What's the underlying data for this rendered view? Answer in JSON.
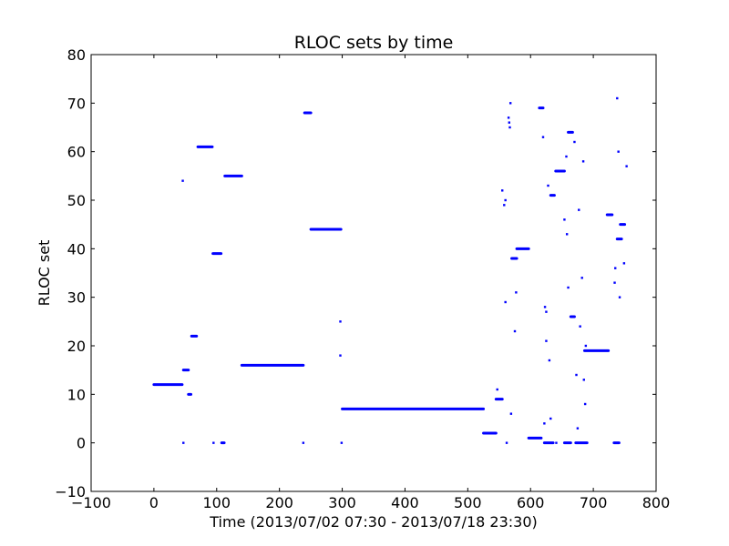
{
  "chart_data": {
    "type": "scatter",
    "title": "RLOC sets by time",
    "xlabel": "Time (2013/07/02 07:30 - 2013/07/18 23:30)",
    "ylabel": "RLOC set",
    "xlim": [
      -100,
      800
    ],
    "ylim": [
      -10,
      80
    ],
    "x_ticks": [
      -100,
      0,
      100,
      200,
      300,
      400,
      500,
      600,
      700,
      800
    ],
    "y_ticks": [
      -10,
      0,
      10,
      20,
      30,
      40,
      50,
      60,
      70,
      80
    ],
    "x_tick_labels": [
      "−100",
      "0",
      "100",
      "200",
      "300",
      "400",
      "500",
      "600",
      "700",
      "800"
    ],
    "y_tick_labels": [
      "−10",
      "0",
      "10",
      "20",
      "30",
      "40",
      "50",
      "60",
      "70",
      "80"
    ],
    "grid": false,
    "marker_color": "#0000ff",
    "series": [
      {
        "segments": [
          {
            "x": [
              0,
              45
            ],
            "y": 12
          },
          {
            "x": [
              47,
              55
            ],
            "y": 15
          },
          {
            "x": [
              55,
              59
            ],
            "y": 10
          },
          {
            "x": [
              60,
              68
            ],
            "y": 22
          },
          {
            "x": [
              70,
              93
            ],
            "y": 61
          },
          {
            "x": [
              94,
              107
            ],
            "y": 39
          },
          {
            "x": [
              108,
              112
            ],
            "y": 0
          },
          {
            "x": [
              113,
              140
            ],
            "y": 55
          },
          {
            "x": [
              140,
              238
            ],
            "y": 16
          },
          {
            "x": [
              240,
              250
            ],
            "y": 68
          },
          {
            "x": [
              250,
              298
            ],
            "y": 44
          },
          {
            "x": [
              300,
              525
            ],
            "y": 7
          },
          {
            "x": [
              525,
              545
            ],
            "y": 2
          },
          {
            "x": [
              545,
              555
            ],
            "y": 9
          },
          {
            "x": [
              570,
              578
            ],
            "y": 38
          },
          {
            "x": [
              578,
              597
            ],
            "y": 40
          },
          {
            "x": [
              597,
              617
            ],
            "y": 1
          },
          {
            "x": [
              614,
              620
            ],
            "y": 69
          },
          {
            "x": [
              622,
              636
            ],
            "y": 0
          },
          {
            "x": [
              632,
              638
            ],
            "y": 51
          },
          {
            "x": [
              640,
              654
            ],
            "y": 56
          },
          {
            "x": [
              654,
              664
            ],
            "y": 0
          },
          {
            "x": [
              660,
              667
            ],
            "y": 64
          },
          {
            "x": [
              664,
              670
            ],
            "y": 26
          },
          {
            "x": [
              672,
              690
            ],
            "y": 0
          },
          {
            "x": [
              686,
              724
            ],
            "y": 19
          },
          {
            "x": [
              722,
              730
            ],
            "y": 47
          },
          {
            "x": [
              733,
              741
            ],
            "y": 0
          },
          {
            "x": [
              738,
              745
            ],
            "y": 42
          },
          {
            "x": [
              743,
              750
            ],
            "y": 45
          }
        ],
        "points": [
          [
            46,
            54
          ],
          [
            47,
            0
          ],
          [
            95,
            0
          ],
          [
            238,
            0
          ],
          [
            297,
            25
          ],
          [
            297,
            18
          ],
          [
            299,
            0
          ],
          [
            547,
            11
          ],
          [
            555,
            52
          ],
          [
            558,
            49
          ],
          [
            560,
            50
          ],
          [
            560,
            29
          ],
          [
            562,
            0
          ],
          [
            565,
            67
          ],
          [
            566,
            66
          ],
          [
            567,
            65
          ],
          [
            568,
            70
          ],
          [
            569,
            6
          ],
          [
            575,
            23
          ],
          [
            577,
            31
          ],
          [
            620,
            63
          ],
          [
            622,
            4
          ],
          [
            623,
            28
          ],
          [
            625,
            21
          ],
          [
            625,
            27
          ],
          [
            628,
            53
          ],
          [
            630,
            17
          ],
          [
            632,
            5
          ],
          [
            641,
            0
          ],
          [
            654,
            46
          ],
          [
            657,
            59
          ],
          [
            658,
            43
          ],
          [
            660,
            32
          ],
          [
            670,
            62
          ],
          [
            673,
            14
          ],
          [
            675,
            3
          ],
          [
            677,
            48
          ],
          [
            679,
            24
          ],
          [
            682,
            34
          ],
          [
            684,
            58
          ],
          [
            685,
            13
          ],
          [
            687,
            8
          ],
          [
            688,
            20
          ],
          [
            734,
            33
          ],
          [
            735,
            36
          ],
          [
            738,
            71
          ],
          [
            740,
            60
          ],
          [
            742,
            30
          ],
          [
            749,
            37
          ],
          [
            753,
            57
          ]
        ]
      }
    ]
  }
}
